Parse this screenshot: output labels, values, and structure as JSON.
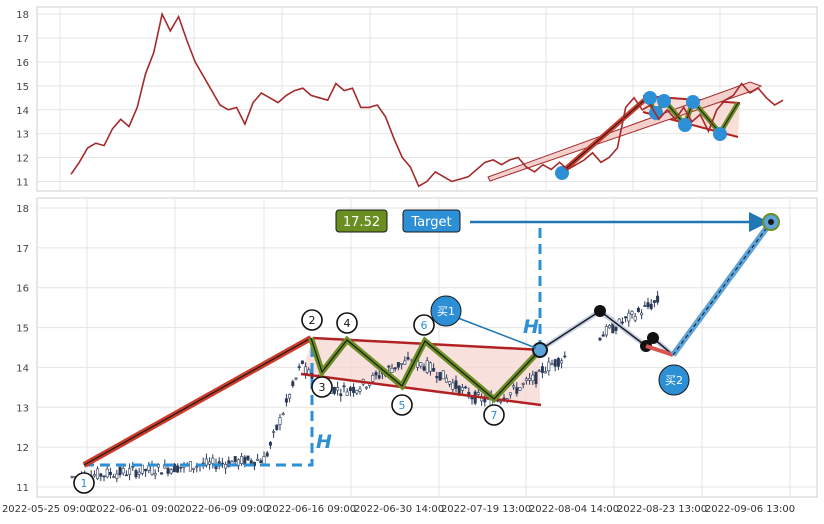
{
  "chart_data": [
    {
      "type": "line",
      "panel": "overview",
      "ylim": [
        10.6,
        18.3
      ],
      "yticks": [
        11,
        12,
        13,
        14,
        15,
        16,
        17,
        18
      ],
      "grid": true,
      "colors": {
        "price": "#a52a2a",
        "trend": "#cc3a2a",
        "zigzag": "#6b8e23",
        "marker": "#2d8fd5"
      },
      "series": [
        {
          "values": [
            11.3,
            11.8,
            12.4,
            12.6,
            12.5,
            13.2,
            13.6,
            13.3,
            14.1,
            15.5,
            16.4,
            18.0,
            17.3,
            17.9,
            16.9,
            16.0,
            15.4,
            14.8,
            14.2,
            14.0,
            14.1,
            13.4,
            14.3,
            14.7,
            14.5,
            14.3,
            14.6,
            14.8,
            14.9,
            14.6,
            14.5,
            14.4,
            15.1,
            14.8,
            14.9,
            14.1,
            14.1,
            14.2,
            13.7,
            12.8,
            12.0,
            11.6,
            10.8,
            11.0,
            11.4,
            11.2,
            11.0,
            11.1,
            11.2,
            11.5,
            11.8,
            11.9,
            11.7,
            11.9,
            12.0,
            11.6,
            11.4,
            11.7,
            11.5,
            11.8,
            11.5,
            11.7,
            11.9,
            12.2,
            11.8,
            12.0,
            12.4,
            14.1,
            14.5,
            14.0,
            14.2,
            13.6,
            14.0,
            13.6,
            14.1,
            13.5,
            13.8,
            13.1,
            14.0,
            14.4,
            14.6,
            15.1,
            14.7,
            14.9,
            14.5,
            14.2,
            14.4
          ]
        }
      ]
    },
    {
      "type": "line",
      "panel": "pattern",
      "ylim": [
        10.75,
        18.25
      ],
      "yticks": [
        11,
        12,
        13,
        14,
        15,
        16,
        17,
        18
      ],
      "x_tick_labels": [
        "2022-05-25 09:00",
        "2022-06-01 09:00",
        "2022-06-09 09:00",
        "2022-06-16 09:00",
        "2022-06-30 14:00",
        "2022-07-19 13:00",
        "2022-08-04 14:00",
        "2022-08-23 13:00",
        "2022-09-06 13:00"
      ],
      "grid": true,
      "colors": {
        "trend": "#cc3a2a",
        "zigzag": "#6b8e23",
        "target_line": "#1f77b4",
        "projection": "#5ba3d9",
        "channel": "#b22222",
        "channel_fill": "#f6d5d0"
      },
      "pivots": [
        {
          "label": "1",
          "value": 11.1
        },
        {
          "label": "2",
          "value": 14.5
        },
        {
          "label": "3",
          "value": 13.5
        },
        {
          "label": "4",
          "value": 14.4
        },
        {
          "label": "5",
          "value": 13.1
        },
        {
          "label": "6",
          "value": 14.4
        },
        {
          "label": "7",
          "value": 12.9
        }
      ],
      "target_value": "17.52",
      "target_label": "Target",
      "buy1_label": "买1",
      "buy2_label": "买2",
      "height_label": "H"
    }
  ]
}
